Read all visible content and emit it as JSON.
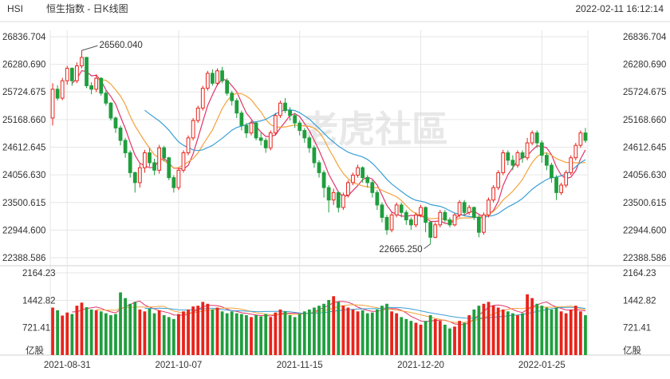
{
  "header": {
    "symbol": "HSI",
    "title": "恒生指数 - 日K线图",
    "timestamp": "2022-02-11 16:12:14"
  },
  "watermark": "老虎社區",
  "colors": {
    "up": "#e8231a",
    "down": "#1f9e3d",
    "ma5": "#e0336a",
    "ma10": "#f4a23b",
    "ma20": "#3aa0d6",
    "grid": "#e6e6e6",
    "axis_text": "#333333"
  },
  "chart_data": {
    "type": "candlestick",
    "title": "恒生指数 - 日K线图",
    "price_axis": {
      "ticks": [
        "26836.704",
        "26280.690",
        "25724.675",
        "25168.660",
        "24612.645",
        "24056.630",
        "23500.615",
        "22944.600",
        "22388.586"
      ],
      "ylim": [
        22388.586,
        26836.704
      ]
    },
    "volume_axis": {
      "ticks": [
        "2164.23",
        "1442.82",
        "721.41"
      ],
      "unit": "亿股",
      "ylim": [
        0,
        2164.23
      ]
    },
    "x_ticks": [
      {
        "label": "2021-08-31",
        "index": 3
      },
      {
        "label": "2021-10-07",
        "index": 26
      },
      {
        "label": "2021-11-15",
        "index": 51
      },
      {
        "label": "2021-12-20",
        "index": 76
      },
      {
        "label": "2022-01-25",
        "index": 101
      }
    ],
    "annotations": [
      {
        "label": "26560.040",
        "index": 6,
        "value": 26560.04,
        "type": "high"
      },
      {
        "label": "22665.250",
        "index": 78,
        "value": 22665.25,
        "type": "low"
      }
    ],
    "moving_averages": [
      "MA5",
      "MA10",
      "MA20"
    ],
    "candles": [
      [
        25200,
        25780,
        25900,
        25050,
        1250
      ],
      [
        25780,
        25600,
        25860,
        25550,
        1180
      ],
      [
        25600,
        25950,
        26010,
        25560,
        1040
      ],
      [
        25950,
        26200,
        26250,
        25870,
        1120
      ],
      [
        26200,
        25950,
        26220,
        25850,
        1080
      ],
      [
        25950,
        26250,
        26320,
        25900,
        1300
      ],
      [
        26250,
        26420,
        26560.04,
        26200,
        1380
      ],
      [
        26420,
        25850,
        26430,
        25800,
        1260
      ],
      [
        25850,
        25780,
        25920,
        25680,
        1200
      ],
      [
        25780,
        26000,
        26080,
        25720,
        1180
      ],
      [
        26000,
        25700,
        26020,
        25650,
        1150
      ],
      [
        25700,
        25500,
        25760,
        25450,
        1100
      ],
      [
        25500,
        25200,
        25520,
        25150,
        1050
      ],
      [
        25200,
        25000,
        25230,
        24900,
        1080
      ],
      [
        25000,
        24750,
        25050,
        24650,
        1650
      ],
      [
        24750,
        24500,
        24800,
        24400,
        1500
      ],
      [
        24500,
        24100,
        24550,
        24000,
        1350
      ],
      [
        24100,
        23900,
        24120,
        23700,
        1400
      ],
      [
        23900,
        24200,
        24280,
        23800,
        1200
      ],
      [
        24200,
        24500,
        24560,
        24100,
        1150
      ],
      [
        24500,
        24300,
        24600,
        24220,
        1220
      ],
      [
        24300,
        24150,
        24380,
        24050,
        1100
      ],
      [
        24150,
        24600,
        24660,
        24080,
        1180
      ],
      [
        24600,
        24400,
        24640,
        24330,
        1050
      ],
      [
        24400,
        24000,
        24420,
        23950,
        1000
      ],
      [
        24000,
        23800,
        24050,
        23700,
        950
      ],
      [
        23800,
        24150,
        24200,
        23750,
        1080
      ],
      [
        24150,
        24500,
        24550,
        24100,
        1150
      ],
      [
        24500,
        24800,
        24850,
        24450,
        1200
      ],
      [
        24800,
        25150,
        25200,
        24750,
        1280
      ],
      [
        25150,
        25400,
        25450,
        25100,
        1300
      ],
      [
        25400,
        25800,
        25850,
        25350,
        1400
      ],
      [
        25800,
        26100,
        26150,
        25750,
        1350
      ],
      [
        26100,
        25900,
        26180,
        25850,
        1200
      ],
      [
        25900,
        26150,
        26200,
        25850,
        1250
      ],
      [
        26150,
        25950,
        26230,
        25900,
        1150
      ],
      [
        25950,
        25700,
        26000,
        25650,
        1100
      ],
      [
        25700,
        25550,
        25750,
        25450,
        1150
      ],
      [
        25550,
        25300,
        25600,
        25200,
        1100
      ],
      [
        25300,
        25050,
        25350,
        24950,
        1080
      ],
      [
        25050,
        24900,
        25100,
        24800,
        1050
      ],
      [
        24900,
        25100,
        25150,
        24850,
        1000
      ],
      [
        25100,
        24800,
        25130,
        24750,
        1050
      ],
      [
        24800,
        24750,
        24900,
        24650,
        1020
      ],
      [
        24750,
        24600,
        24800,
        24500,
        1080
      ],
      [
        24600,
        24900,
        24950,
        24550,
        1000
      ],
      [
        24900,
        25250,
        25300,
        24850,
        1120
      ],
      [
        25250,
        25500,
        25550,
        25200,
        1200
      ],
      [
        25500,
        25350,
        25600,
        25300,
        1150
      ],
      [
        25350,
        25250,
        25420,
        25150,
        1050
      ],
      [
        25250,
        25100,
        25300,
        25000,
        1000
      ],
      [
        25100,
        24950,
        25150,
        24850,
        1080
      ],
      [
        24950,
        24800,
        25000,
        24700,
        1150
      ],
      [
        24800,
        24600,
        24850,
        24500,
        1200
      ],
      [
        24600,
        24300,
        24650,
        24200,
        1250
      ],
      [
        24300,
        24100,
        24350,
        24000,
        1300
      ],
      [
        24100,
        23800,
        24150,
        23600,
        1350
      ],
      [
        23800,
        23550,
        23850,
        23300,
        1450
      ],
      [
        23550,
        23700,
        23780,
        23450,
        1550
      ],
      [
        23700,
        23400,
        23720,
        23300,
        1400
      ],
      [
        23400,
        23650,
        23700,
        23350,
        1300
      ],
      [
        23650,
        23900,
        23950,
        23600,
        1250
      ],
      [
        23900,
        24050,
        24100,
        23850,
        1200
      ],
      [
        24050,
        24200,
        24260,
        24000,
        1150
      ],
      [
        24200,
        24000,
        24230,
        23900,
        1180
      ],
      [
        24000,
        23900,
        24050,
        23800,
        1100
      ],
      [
        23900,
        23700,
        23950,
        23600,
        1120
      ],
      [
        23700,
        23450,
        23750,
        23350,
        1200
      ],
      [
        23450,
        23200,
        23500,
        23100,
        1300
      ],
      [
        23200,
        22950,
        23250,
        22850,
        1350
      ],
      [
        22950,
        23250,
        23300,
        22900,
        1150
      ],
      [
        23250,
        23450,
        23500,
        23200,
        1100
      ],
      [
        23450,
        23300,
        23500,
        23200,
        1000
      ],
      [
        23300,
        23150,
        23350,
        23050,
        950
      ],
      [
        23150,
        23050,
        23200,
        22950,
        900
      ],
      [
        23050,
        23250,
        23300,
        23000,
        850
      ],
      [
        23250,
        23400,
        23450,
        23200,
        800
      ],
      [
        23400,
        23100,
        23420,
        22900,
        900
      ],
      [
        23100,
        22800,
        23120,
        22665.25,
        1050
      ],
      [
        22800,
        23050,
        23100,
        22780,
        950
      ],
      [
        23050,
        23300,
        23350,
        23000,
        900
      ],
      [
        23300,
        23150,
        23350,
        23100,
        800
      ],
      [
        23150,
        23050,
        23200,
        23000,
        700
      ],
      [
        23050,
        23250,
        23280,
        23020,
        750
      ],
      [
        23250,
        23500,
        23550,
        23200,
        900
      ],
      [
        23500,
        23300,
        23550,
        23250,
        850
      ],
      [
        23300,
        23400,
        23450,
        23250,
        1050
      ],
      [
        23400,
        23200,
        23420,
        23150,
        1200
      ],
      [
        23200,
        22900,
        23250,
        22800,
        1300
      ],
      [
        22900,
        23250,
        23300,
        22850,
        1350
      ],
      [
        23250,
        23550,
        23600,
        23200,
        1400
      ],
      [
        23550,
        23800,
        23850,
        23500,
        1300
      ],
      [
        23800,
        24100,
        24150,
        23750,
        1250
      ],
      [
        24100,
        24500,
        24560,
        24050,
        1200
      ],
      [
        24500,
        24350,
        24550,
        24250,
        1150
      ],
      [
        24350,
        24250,
        24450,
        24150,
        1100
      ],
      [
        24250,
        24500,
        24550,
        24200,
        1050
      ],
      [
        24500,
        24400,
        24550,
        24300,
        1100
      ],
      [
        24400,
        24700,
        24800,
        24350,
        1600
      ],
      [
        24700,
        24900,
        24950,
        24650,
        1500
      ],
      [
        24900,
        24700,
        24950,
        24600,
        1350
      ],
      [
        24700,
        24450,
        24750,
        24300,
        1300
      ],
      [
        24450,
        24250,
        24500,
        24150,
        1250
      ],
      [
        24250,
        24000,
        24300,
        23900,
        1200
      ],
      [
        24000,
        23700,
        24050,
        23550,
        1250
      ],
      [
        23700,
        23850,
        23900,
        23650,
        1150
      ],
      [
        23850,
        24100,
        24150,
        23800,
        1100
      ],
      [
        24100,
        24400,
        24450,
        24050,
        1200
      ],
      [
        24400,
        24650,
        24700,
        24350,
        1300
      ],
      [
        24650,
        24900,
        24950,
        24600,
        1150
      ],
      [
        24900,
        24750,
        25000,
        24700,
        1050
      ]
    ]
  }
}
